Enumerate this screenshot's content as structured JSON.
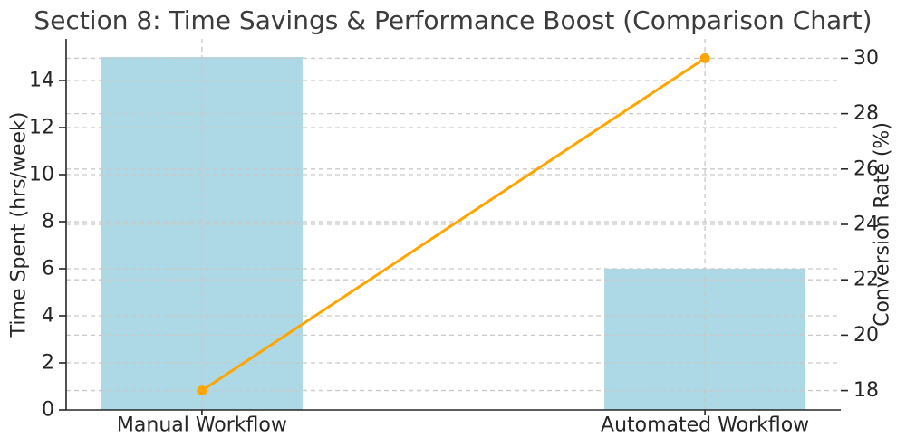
{
  "chart_data": {
    "type": "bar",
    "title": "Section 8: Time Savings & Performance Boost (Comparison Chart)",
    "categories": [
      "Manual Workflow",
      "Automated Workflow"
    ],
    "series": [
      {
        "name": "Time Spent (hrs/week)",
        "kind": "bar",
        "axis": "left",
        "values": [
          15,
          6
        ],
        "color": "#ADD8E6"
      },
      {
        "name": "Conversion Rate (%)",
        "kind": "line",
        "axis": "right",
        "values": [
          18,
          30
        ],
        "color": "#FFA500",
        "marker": "circle"
      }
    ],
    "left_axis": {
      "label": "Time Spent (hrs/week)",
      "ticks": [
        0,
        2,
        4,
        6,
        8,
        10,
        12,
        14
      ],
      "range": [
        0,
        15.77
      ]
    },
    "right_axis": {
      "label": "Conversion Rate (%)",
      "ticks": [
        18,
        20,
        22,
        24,
        26,
        28,
        30
      ],
      "range": [
        17.3,
        30.7
      ]
    },
    "xlim": [
      -0.27,
      1.27
    ],
    "bar_width": 0.4,
    "grid": {
      "visible": true,
      "style": "dashed",
      "color": "#c9c9c9",
      "horizontal": true,
      "vertical": true
    },
    "legend": "none",
    "colors": {
      "background": "#ffffff",
      "spine": "#262626",
      "tick_text": "#262626",
      "title_text": "#3c3c3c"
    }
  }
}
